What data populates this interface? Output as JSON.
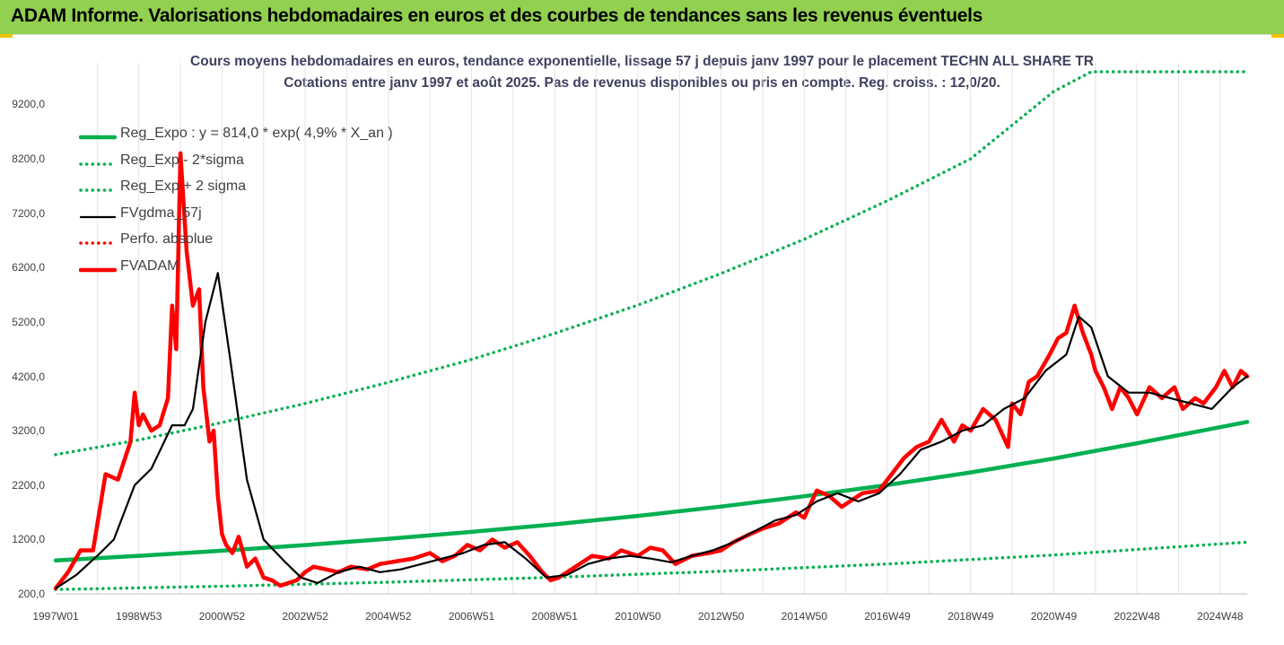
{
  "header": {
    "title": "ADAM Informe. Valorisations hebdomadaires en euros et des courbes de tendances sans les revenus éventuels"
  },
  "chart_data": {
    "type": "line",
    "title": "Cours moyens hebdomadaires en euros, tendance exponentielle, lissage 57 j depuis janv 1997 pour le placement TECHN ALL SHARE TR",
    "subtitle": "Cotations entre janv 1997 et août 2025. Pas de revenus disponibles ou pris en compte. Reg. croiss. : 12,0/20.",
    "ylim": [
      200,
      9800
    ],
    "y_ticks": [
      "200,0",
      "1200,0",
      "2200,0",
      "3200,0",
      "4200,0",
      "5200,0",
      "6200,0",
      "7200,0",
      "8200,0",
      "9200,0"
    ],
    "y_tick_values": [
      200,
      1200,
      2200,
      3200,
      4200,
      5200,
      6200,
      7200,
      8200,
      9200
    ],
    "x_ticks": [
      "1997W01",
      "1998W53",
      "2000W52",
      "2002W52",
      "2004W52",
      "2006W51",
      "2008W51",
      "2010W50",
      "2012W50",
      "2014W50",
      "2016W49",
      "2018W49",
      "2020W49",
      "2022W48",
      "2024W48"
    ],
    "x_tick_values": [
      1997.0,
      1999.0,
      2001.0,
      2003.0,
      2005.0,
      2007.0,
      2009.0,
      2011.0,
      2013.0,
      2015.0,
      2017.0,
      2019.0,
      2021.0,
      2023.0,
      2025.0
    ],
    "x_range": [
      1997.0,
      2025.65
    ],
    "grid": "vertical",
    "legend_position": "top-left",
    "series": [
      {
        "name": "Reg_Expo : y = 814,0 * exp( 4,9% *  X_an )",
        "color": "#00b050",
        "style": "solid-thick",
        "x": [
          1997.0,
          1999.0,
          2001.0,
          2003.0,
          2005.0,
          2007.0,
          2009.0,
          2011.0,
          2013.0,
          2015.0,
          2017.0,
          2019.0,
          2021.0,
          2023.0,
          2025.65
        ],
        "y": [
          814,
          899,
          993,
          1097,
          1212,
          1339,
          1479,
          1634,
          1805,
          1994,
          2203,
          2434,
          2689,
          2970,
          3362
        ]
      },
      {
        "name": "Reg_Exp - 2*sigma",
        "color": "#00b050",
        "style": "dotted",
        "x": [
          1997.0,
          2001.0,
          2005.0,
          2009.0,
          2013.0,
          2017.0,
          2021.0,
          2025.65
        ],
        "y": [
          280,
          340,
          415,
          505,
          615,
          750,
          915,
          1150
        ]
      },
      {
        "name": "Reg_Exp + 2 sigma",
        "color": "#00b050",
        "style": "dotted",
        "x": [
          1997.0,
          1999.0,
          2001.0,
          2003.0,
          2005.0,
          2007.0,
          2009.0,
          2011.0,
          2013.0,
          2015.0,
          2017.0,
          2019.0,
          2021.0,
          2021.9,
          2023.0,
          2025.65
        ],
        "y": [
          2760,
          3030,
          3350,
          3700,
          4090,
          4510,
          4990,
          5510,
          6090,
          6720,
          7430,
          8200,
          9440,
          9800,
          9800,
          9800
        ]
      },
      {
        "name": "FVgdma_57j",
        "color": "#000000",
        "style": "solid",
        "x": [
          1997.0,
          1997.5,
          1998.0,
          1998.4,
          1998.9,
          1999.3,
          1999.8,
          2000.1,
          2000.3,
          2000.6,
          2000.9,
          2001.2,
          2001.6,
          2002.0,
          2002.5,
          2002.9,
          2003.3,
          2003.8,
          2004.3,
          2004.8,
          2005.3,
          2005.8,
          2006.3,
          2006.8,
          2007.3,
          2007.8,
          2008.3,
          2008.8,
          2009.3,
          2009.8,
          2010.3,
          2010.8,
          2011.3,
          2011.8,
          2012.3,
          2012.8,
          2013.3,
          2013.8,
          2014.3,
          2014.8,
          2015.3,
          2015.8,
          2016.3,
          2016.8,
          2017.3,
          2017.8,
          2018.3,
          2018.8,
          2019.3,
          2019.8,
          2020.3,
          2020.8,
          2021.3,
          2021.6,
          2021.9,
          2022.3,
          2022.8,
          2023.3,
          2023.8,
          2024.3,
          2024.8,
          2025.3,
          2025.65
        ],
        "y": [
          300,
          550,
          900,
          1200,
          2200,
          2500,
          3300,
          3300,
          3600,
          5200,
          6100,
          4500,
          2300,
          1200,
          800,
          500,
          400,
          600,
          700,
          600,
          650,
          750,
          850,
          950,
          1100,
          1150,
          850,
          500,
          550,
          750,
          850,
          900,
          850,
          780,
          900,
          1000,
          1150,
          1350,
          1550,
          1650,
          1900,
          2050,
          1900,
          2050,
          2400,
          2850,
          3000,
          3200,
          3300,
          3600,
          3800,
          4300,
          4600,
          5300,
          5100,
          4200,
          3900,
          3900,
          3800,
          3700,
          3600,
          4000,
          4200
        ]
      },
      {
        "name": "Perfo. absolue",
        "color": "#ff0000",
        "style": "dotted",
        "x": [],
        "y": []
      },
      {
        "name": "FVADAM",
        "color": "#ff0000",
        "style": "solid-thick",
        "x": [
          1997.0,
          1997.3,
          1997.6,
          1997.9,
          1998.2,
          1998.5,
          1998.8,
          1998.9,
          1999.0,
          1999.1,
          1999.3,
          1999.5,
          1999.7,
          1999.8,
          1999.9,
          2000.0,
          2000.15,
          2000.3,
          2000.45,
          2000.55,
          2000.7,
          2000.8,
          2000.9,
          2001.0,
          2001.1,
          2001.25,
          2001.4,
          2001.6,
          2001.8,
          2002.0,
          2002.2,
          2002.4,
          2002.6,
          2002.8,
          2003.0,
          2003.2,
          2003.5,
          2003.8,
          2004.1,
          2004.5,
          2004.8,
          2005.2,
          2005.6,
          2006.0,
          2006.3,
          2006.6,
          2006.9,
          2007.2,
          2007.5,
          2007.8,
          2008.1,
          2008.4,
          2008.7,
          2008.9,
          2009.1,
          2009.5,
          2009.9,
          2010.3,
          2010.6,
          2011.0,
          2011.3,
          2011.6,
          2011.9,
          2012.3,
          2012.7,
          2013.0,
          2013.3,
          2013.7,
          2014.0,
          2014.4,
          2014.8,
          2015.0,
          2015.3,
          2015.6,
          2015.9,
          2016.1,
          2016.4,
          2016.8,
          2017.1,
          2017.4,
          2017.7,
          2018.0,
          2018.3,
          2018.6,
          2018.8,
          2019.0,
          2019.3,
          2019.6,
          2019.9,
          2020.0,
          2020.2,
          2020.4,
          2020.6,
          2020.9,
          2021.1,
          2021.3,
          2021.5,
          2021.7,
          2021.9,
          2022.0,
          2022.2,
          2022.4,
          2022.6,
          2022.8,
          2023.0,
          2023.3,
          2023.6,
          2023.9,
          2024.1,
          2024.4,
          2024.6,
          2024.9,
          2025.1,
          2025.3,
          2025.5,
          2025.65
        ],
        "y": [
          300,
          600,
          1000,
          1000,
          2400,
          2300,
          3000,
          3900,
          3300,
          3500,
          3200,
          3300,
          3800,
          5500,
          4700,
          8300,
          6500,
          5500,
          5800,
          4000,
          3000,
          3200,
          2000,
          1300,
          1100,
          950,
          1250,
          700,
          850,
          500,
          450,
          350,
          400,
          450,
          600,
          700,
          650,
          600,
          700,
          650,
          750,
          800,
          850,
          950,
          800,
          900,
          1100,
          1000,
          1200,
          1050,
          1150,
          900,
          600,
          450,
          500,
          700,
          900,
          850,
          1000,
          900,
          1050,
          1000,
          750,
          900,
          950,
          1000,
          1150,
          1300,
          1400,
          1500,
          1700,
          1600,
          2100,
          2000,
          1800,
          1900,
          2050,
          2100,
          2400,
          2700,
          2900,
          3000,
          3400,
          3000,
          3300,
          3200,
          3600,
          3400,
          2900,
          3700,
          3500,
          4100,
          4200,
          4600,
          4900,
          5000,
          5500,
          5000,
          4600,
          4300,
          4000,
          3600,
          4000,
          3800,
          3500,
          4000,
          3800,
          4000,
          3600,
          3800,
          3700,
          4000,
          4300,
          4000,
          4300,
          4200
        ]
      }
    ]
  }
}
